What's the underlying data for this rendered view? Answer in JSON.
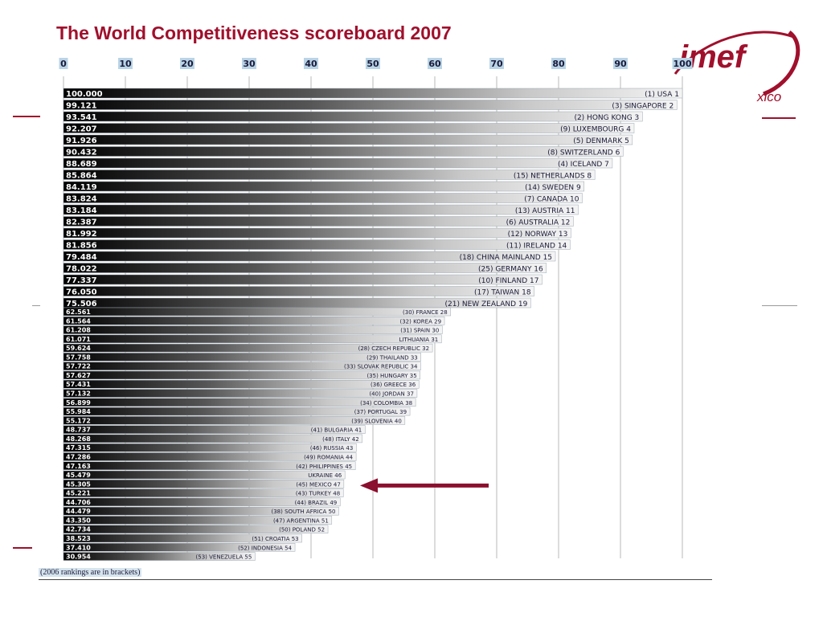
{
  "slide": {
    "title": "The World Competitiveness scoreboard 2007",
    "footnote": "(2006 rankings are in brackets)",
    "logo_text": "imef",
    "logo_subtext": "xico",
    "accent_color": "#a0102c"
  },
  "chart_data": {
    "type": "bar",
    "orientation": "horizontal",
    "xlim": [
      0,
      100
    ],
    "xticks": [
      "0",
      "10",
      "20",
      "30",
      "40",
      "50",
      "60",
      "70",
      "80",
      "90",
      "100"
    ],
    "grid": true,
    "bars": [
      {
        "score": "100.000",
        "value": 100.0,
        "label": "(1) USA 1"
      },
      {
        "score": "99.121",
        "value": 99.121,
        "label": "(3) SINGAPORE 2"
      },
      {
        "score": "93.541",
        "value": 93.541,
        "label": "(2) HONG KONG 3"
      },
      {
        "score": "92.207",
        "value": 92.207,
        "label": "(9) LUXEMBOURG 4"
      },
      {
        "score": "91.926",
        "value": 91.926,
        "label": "(5) DENMARK 5"
      },
      {
        "score": "90.432",
        "value": 90.432,
        "label": "(8) SWITZERLAND 6"
      },
      {
        "score": "88.689",
        "value": 88.689,
        "label": "(4) ICELAND 7"
      },
      {
        "score": "85.864",
        "value": 85.864,
        "label": "(15) NETHERLANDS 8"
      },
      {
        "score": "84.119",
        "value": 84.119,
        "label": "(14) SWEDEN 9"
      },
      {
        "score": "83.824",
        "value": 83.824,
        "label": "(7) CANADA 10"
      },
      {
        "score": "83.184",
        "value": 83.184,
        "label": "(13) AUSTRIA 11"
      },
      {
        "score": "82.387",
        "value": 82.387,
        "label": "(6) AUSTRALIA 12"
      },
      {
        "score": "81.992",
        "value": 81.992,
        "label": "(12) NORWAY 13"
      },
      {
        "score": "81.856",
        "value": 81.856,
        "label": "(11) IRELAND 14"
      },
      {
        "score": "79.484",
        "value": 79.484,
        "label": "(18) CHINA MAINLAND 15"
      },
      {
        "score": "78.022",
        "value": 78.022,
        "label": "(25) GERMANY 16"
      },
      {
        "score": "77.337",
        "value": 77.337,
        "label": "(10) FINLAND 17"
      },
      {
        "score": "76.050",
        "value": 76.05,
        "label": "(17) TAIWAN 18"
      },
      {
        "score": "75.506",
        "value": 75.506,
        "label": "(21) NEW ZEALAND 19"
      },
      {
        "score": "62.561",
        "value": 62.561,
        "label": "(30) FRANCE 28"
      },
      {
        "score": "61.564",
        "value": 61.564,
        "label": "(32) KOREA 29"
      },
      {
        "score": "61.208",
        "value": 61.208,
        "label": "(31) SPAIN 30"
      },
      {
        "score": "61.071",
        "value": 61.071,
        "label": "LITHUANIA 31"
      },
      {
        "score": "59.624",
        "value": 59.624,
        "label": "(28) CZECH REPUBLIC 32"
      },
      {
        "score": "57.758",
        "value": 57.758,
        "label": "(29) THAILAND 33"
      },
      {
        "score": "57.722",
        "value": 57.722,
        "label": "(33) SLOVAK REPUBLIC 34"
      },
      {
        "score": "57.627",
        "value": 57.627,
        "label": "(35) HUNGARY 35"
      },
      {
        "score": "57.431",
        "value": 57.431,
        "label": "(36) GREECE 36"
      },
      {
        "score": "57.132",
        "value": 57.132,
        "label": "(40) JORDAN 37"
      },
      {
        "score": "56.899",
        "value": 56.899,
        "label": "(34) COLOMBIA 38"
      },
      {
        "score": "55.984",
        "value": 55.984,
        "label": "(37) PORTUGAL 39"
      },
      {
        "score": "55.172",
        "value": 55.172,
        "label": "(39) SLOVENIA 40"
      },
      {
        "score": "48.737",
        "value": 48.737,
        "label": "(41) BULGARIA 41"
      },
      {
        "score": "48.268",
        "value": 48.268,
        "label": "(48) ITALY 42"
      },
      {
        "score": "47.315",
        "value": 47.315,
        "label": "(46) RUSSIA 43"
      },
      {
        "score": "47.286",
        "value": 47.286,
        "label": "(49) ROMANIA 44"
      },
      {
        "score": "47.163",
        "value": 47.163,
        "label": "(42) PHILIPPINES 45"
      },
      {
        "score": "45.479",
        "value": 45.479,
        "label": "UKRAINE 46"
      },
      {
        "score": "45.305",
        "value": 45.305,
        "label": "(45) MEXICO 47",
        "highlight": true
      },
      {
        "score": "45.221",
        "value": 45.221,
        "label": "(43) TURKEY 48"
      },
      {
        "score": "44.706",
        "value": 44.706,
        "label": "(44) BRAZIL 49"
      },
      {
        "score": "44.479",
        "value": 44.479,
        "label": "(38) SOUTH AFRICA 50"
      },
      {
        "score": "43.350",
        "value": 43.35,
        "label": "(47) ARGENTINA 51"
      },
      {
        "score": "42.734",
        "value": 42.734,
        "label": "(50) POLAND 52"
      },
      {
        "score": "38.523",
        "value": 38.523,
        "label": "(51) CROATIA 53"
      },
      {
        "score": "37.410",
        "value": 37.41,
        "label": "(52) INDONESIA 54"
      },
      {
        "score": "30.954",
        "value": 30.954,
        "label": "(53) VENEZUELA 55"
      }
    ]
  }
}
